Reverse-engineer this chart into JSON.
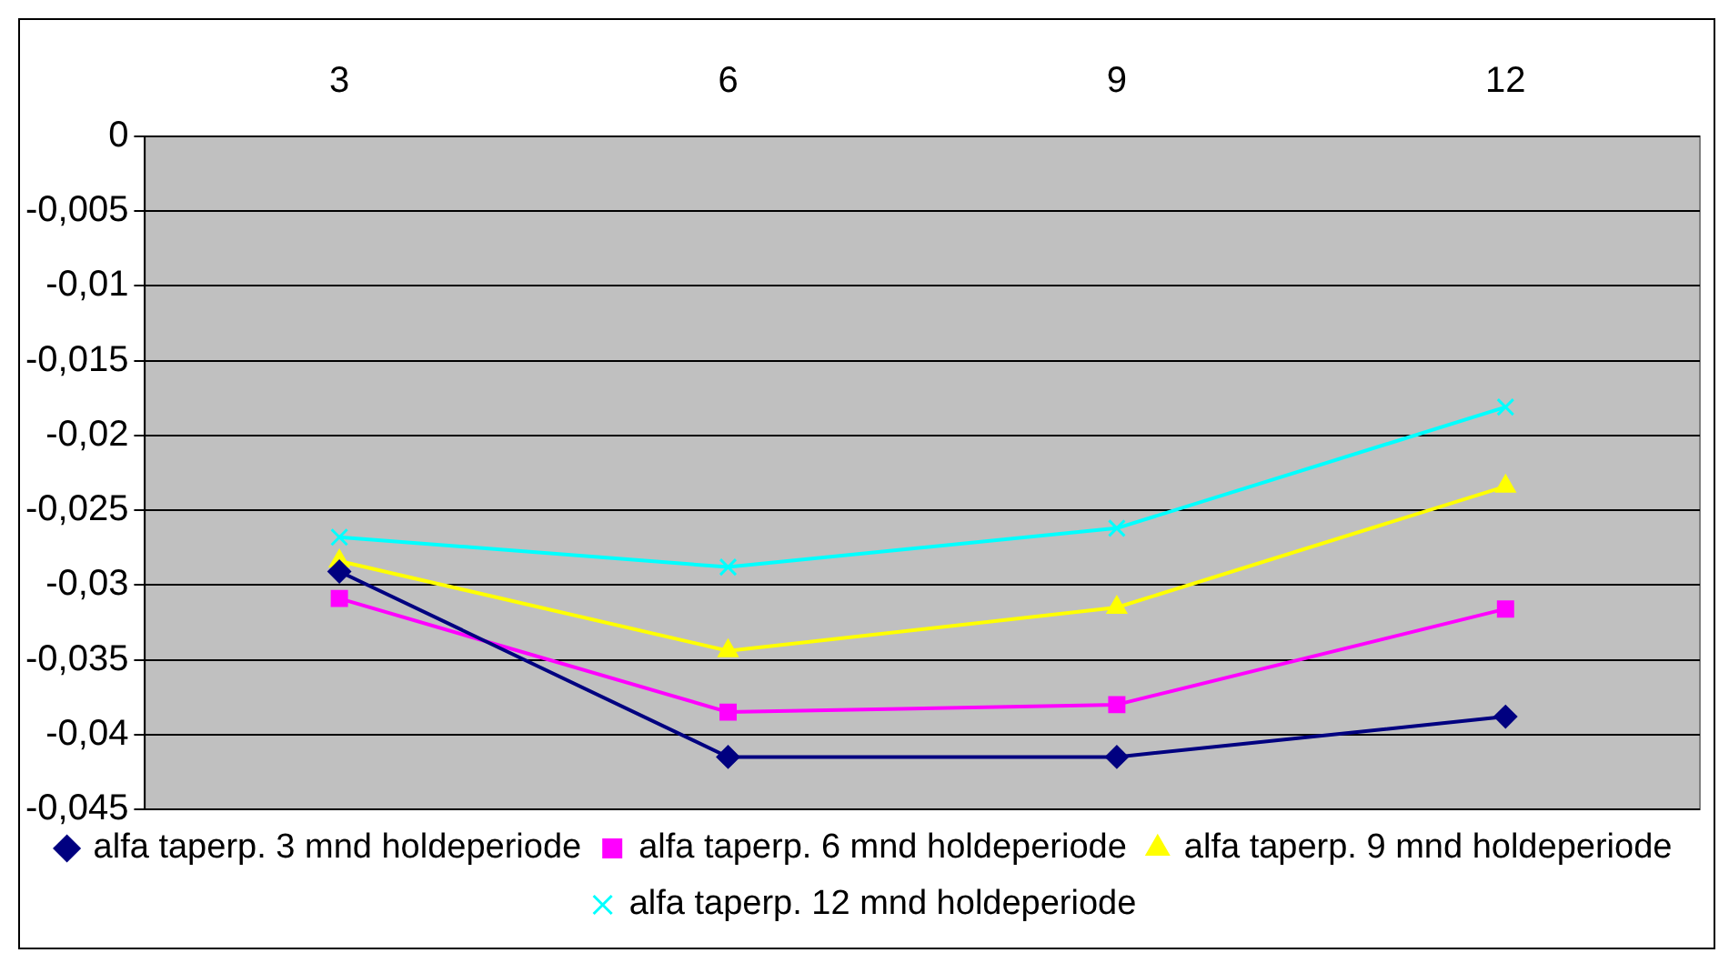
{
  "chart_data": {
    "type": "line",
    "categories": [
      "3",
      "6",
      "9",
      "12"
    ],
    "series": [
      {
        "name": "alfa taperp. 3 mnd holdeperiode",
        "color": "#000080",
        "marker": "diamond",
        "values": [
          -0.0291,
          -0.0415,
          -0.0415,
          -0.0388
        ]
      },
      {
        "name": "alfa taperp. 6 mnd holdeperiode",
        "color": "#ff00ff",
        "marker": "square",
        "values": [
          -0.0309,
          -0.0385,
          -0.038,
          -0.0316
        ]
      },
      {
        "name": "alfa taperp. 9 mnd holdeperiode",
        "color": "#ffff00",
        "marker": "triangle",
        "values": [
          -0.0284,
          -0.0344,
          -0.0315,
          -0.0234
        ]
      },
      {
        "name": "alfa taperp. 12 mnd holdeperiode",
        "color": "#00ffff",
        "marker": "cross",
        "values": [
          -0.0268,
          -0.0288,
          -0.0262,
          -0.0181
        ]
      }
    ],
    "ylim": [
      -0.045,
      0
    ],
    "yticks": [
      {
        "value": 0,
        "label": "0"
      },
      {
        "value": -0.005,
        "label": "-0,005"
      },
      {
        "value": -0.01,
        "label": "-0,01"
      },
      {
        "value": -0.015,
        "label": "-0,015"
      },
      {
        "value": -0.02,
        "label": "-0,02"
      },
      {
        "value": -0.025,
        "label": "-0,025"
      },
      {
        "value": -0.03,
        "label": "-0,03"
      },
      {
        "value": -0.035,
        "label": "-0,035"
      },
      {
        "value": -0.04,
        "label": "-0,04"
      },
      {
        "value": -0.045,
        "label": "-0,045"
      }
    ],
    "grid": "y",
    "legend": "bottom",
    "line_style": "solid"
  }
}
